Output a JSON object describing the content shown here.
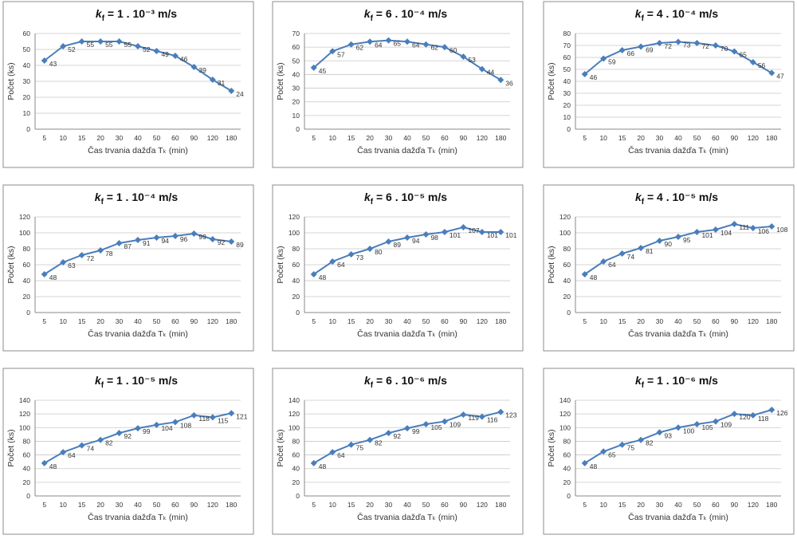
{
  "chart_data": [
    {
      "type": "line",
      "title_symbol": "k",
      "title_subscript": "f",
      "title": " = 1 . 10⁻³ m/s",
      "x_label": "Čas trvania dažďa Tₖ (min)",
      "y_label": "Počet (ks)",
      "categories": [
        "5",
        "10",
        "15",
        "20",
        "30",
        "40",
        "50",
        "60",
        "90",
        "120",
        "180"
      ],
      "values": [
        43,
        52,
        55,
        55,
        55,
        52,
        49,
        46,
        39,
        31,
        24
      ],
      "ylim": [
        0,
        60
      ],
      "yticks": [
        0,
        10,
        20,
        30,
        40,
        50,
        60
      ],
      "color": "#4a7ebb",
      "grid": true
    },
    {
      "type": "line",
      "title_symbol": "k",
      "title_subscript": "f",
      "title": " = 6 . 10⁻⁴ m/s",
      "x_label": "Čas trvania dažďa Tₖ (min)",
      "y_label": "Počet (ks)",
      "categories": [
        "5",
        "10",
        "15",
        "20",
        "30",
        "40",
        "50",
        "60",
        "90",
        "120",
        "180"
      ],
      "values": [
        45,
        57,
        62,
        64,
        65,
        64,
        62,
        60,
        53,
        44,
        36
      ],
      "ylim": [
        0,
        70
      ],
      "yticks": [
        0,
        10,
        20,
        30,
        40,
        50,
        60,
        70
      ],
      "color": "#4a7ebb",
      "grid": true
    },
    {
      "type": "line",
      "title_symbol": "k",
      "title_subscript": "f",
      "title": " = 4 . 10⁻⁴ m/s",
      "x_label": "Čas trvania dažďa Tₖ (min)",
      "y_label": "Počet (ks)",
      "categories": [
        "5",
        "10",
        "15",
        "20",
        "30",
        "40",
        "50",
        "60",
        "90",
        "120",
        "180"
      ],
      "values": [
        46,
        59,
        66,
        69,
        72,
        73,
        72,
        70,
        65,
        56,
        47
      ],
      "ylim": [
        0,
        80
      ],
      "yticks": [
        0,
        10,
        20,
        30,
        40,
        50,
        60,
        70,
        80
      ],
      "color": "#4a7ebb",
      "grid": true
    },
    {
      "type": "line",
      "title_symbol": "k",
      "title_subscript": "f",
      "title": " = 1 . 10⁻⁴ m/s",
      "x_label": "Čas trvania dažďa Tₖ (min)",
      "y_label": "Počet (ks)",
      "categories": [
        "5",
        "10",
        "15",
        "20",
        "30",
        "40",
        "50",
        "60",
        "90",
        "120",
        "180"
      ],
      "values": [
        48,
        63,
        72,
        78,
        87,
        91,
        94,
        96,
        99,
        92,
        89
      ],
      "ylim": [
        0,
        120
      ],
      "yticks": [
        0,
        20,
        40,
        60,
        80,
        100,
        120
      ],
      "color": "#4a7ebb",
      "grid": true
    },
    {
      "type": "line",
      "title_symbol": "k",
      "title_subscript": "f",
      "title": " = 6 . 10⁻⁵ m/s",
      "x_label": "Čas trvania dažďa Tₖ (min)",
      "y_label": "Počet (ks)",
      "categories": [
        "5",
        "10",
        "15",
        "20",
        "30",
        "40",
        "50",
        "60",
        "90",
        "120",
        "180"
      ],
      "values": [
        48,
        64,
        73,
        80,
        89,
        94,
        98,
        101,
        107,
        101,
        101
      ],
      "ylim": [
        0,
        120
      ],
      "yticks": [
        0,
        20,
        40,
        60,
        80,
        100,
        120
      ],
      "color": "#4a7ebb",
      "grid": true
    },
    {
      "type": "line",
      "title_symbol": "k",
      "title_subscript": "f",
      "title": " = 4 . 10⁻⁵ m/s",
      "x_label": "Čas trvania dažďa Tₖ (min)",
      "y_label": "Počet (ks)",
      "categories": [
        "5",
        "10",
        "15",
        "20",
        "30",
        "40",
        "50",
        "60",
        "90",
        "120",
        "180"
      ],
      "values": [
        48,
        64,
        74,
        81,
        90,
        95,
        101,
        104,
        111,
        106,
        108
      ],
      "ylim": [
        0,
        120
      ],
      "yticks": [
        0,
        20,
        40,
        60,
        80,
        100,
        120
      ],
      "color": "#4a7ebb",
      "grid": true
    },
    {
      "type": "line",
      "title_symbol": "k",
      "title_subscript": "f",
      "title": " = 1 . 10⁻⁵ m/s",
      "x_label": "Čas trvania dažďa Tₖ (min)",
      "y_label": "Počet (ks)",
      "categories": [
        "5",
        "10",
        "15",
        "20",
        "30",
        "40",
        "50",
        "60",
        "90",
        "120",
        "180"
      ],
      "values": [
        48,
        64,
        74,
        82,
        92,
        99,
        104,
        108,
        118,
        115,
        121
      ],
      "ylim": [
        0,
        140
      ],
      "yticks": [
        0,
        20,
        40,
        60,
        80,
        100,
        120,
        140
      ],
      "color": "#4a7ebb",
      "grid": true
    },
    {
      "type": "line",
      "title_symbol": "k",
      "title_subscript": "f",
      "title": " = 6 . 10⁻⁶ m/s",
      "x_label": "Čas trvania dažďa Tₖ (min)",
      "y_label": "Počet (ks)",
      "categories": [
        "5",
        "10",
        "15",
        "20",
        "30",
        "40",
        "50",
        "60",
        "90",
        "120",
        "180"
      ],
      "values": [
        48,
        64,
        75,
        82,
        92,
        99,
        105,
        109,
        119,
        116,
        123
      ],
      "ylim": [
        0,
        140
      ],
      "yticks": [
        0,
        20,
        40,
        60,
        80,
        100,
        120,
        140
      ],
      "color": "#4a7ebb",
      "grid": true
    },
    {
      "type": "line",
      "title_symbol": "k",
      "title_subscript": "f",
      "title": " = 1 . 10⁻⁶ m/s",
      "x_label": "Čas trvania dažďa Tₖ (min)",
      "y_label": "Počet (ks)",
      "categories": [
        "5",
        "10",
        "15",
        "20",
        "30",
        "40",
        "50",
        "60",
        "90",
        "120",
        "180"
      ],
      "values": [
        48,
        65,
        75,
        82,
        93,
        100,
        105,
        109,
        120,
        118,
        126
      ],
      "ylim": [
        0,
        140
      ],
      "yticks": [
        0,
        20,
        40,
        60,
        80,
        100,
        120,
        140
      ],
      "color": "#4a7ebb",
      "grid": true
    }
  ]
}
